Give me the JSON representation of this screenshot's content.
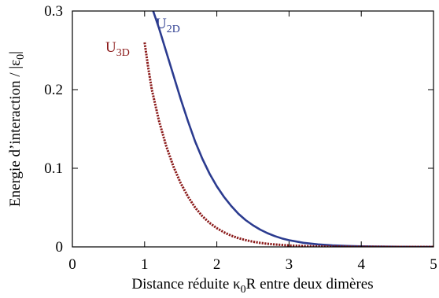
{
  "chart_data": {
    "type": "line",
    "xlabel": "Distance réduite κ0R entre deux dimères",
    "xlabel_parts": {
      "before": "Distance réduite κ",
      "sub": "0",
      "after": "R entre deux dimères"
    },
    "ylabel": "Energie d'interaction / |ε0|",
    "ylabel_parts": {
      "before": "Energie d’interaction / |ε",
      "sub": "0",
      "after": "|"
    },
    "xlim": [
      0,
      5
    ],
    "ylim": [
      0,
      0.3
    ],
    "xticks": [
      0,
      1,
      2,
      3,
      4,
      5
    ],
    "yticks": [
      0,
      0.1,
      0.2,
      0.3
    ],
    "ytick_labels": [
      "0",
      "0.1",
      "0.2",
      "0.3"
    ],
    "grid": false,
    "series": [
      {
        "name": "U2D",
        "name_parts": {
          "base": "U",
          "sub": "2D"
        },
        "color": "#2b3b8f",
        "style": "solid",
        "x": [
          1.0,
          1.1,
          1.2,
          1.3,
          1.4,
          1.5,
          1.6,
          1.7,
          1.8,
          1.9,
          2.0,
          2.1,
          2.2,
          2.3,
          2.4,
          2.5,
          2.6,
          2.7,
          2.8,
          2.9,
          3.0,
          3.2,
          3.4,
          3.6,
          3.8,
          4.0,
          4.2,
          4.4,
          4.6,
          4.8,
          5.0
        ],
        "y": [
          0.33,
          0.305,
          0.278,
          0.248,
          0.218,
          0.188,
          0.16,
          0.134,
          0.112,
          0.093,
          0.077,
          0.0635,
          0.052,
          0.042,
          0.034,
          0.0275,
          0.022,
          0.0175,
          0.0138,
          0.0108,
          0.0085,
          0.0052,
          0.0032,
          0.0019,
          0.0012,
          0.0007,
          0.0004,
          0.0003,
          0.0002,
          0.0001,
          0.0001
        ]
      },
      {
        "name": "U3D",
        "name_parts": {
          "base": "U",
          "sub": "3D"
        },
        "color": "#8b1a1a",
        "style": "dotted",
        "x": [
          1.0,
          1.05,
          1.1,
          1.2,
          1.3,
          1.4,
          1.5,
          1.6,
          1.7,
          1.8,
          1.9,
          2.0,
          2.1,
          2.2,
          2.3,
          2.4,
          2.5,
          2.6,
          2.7,
          2.8,
          3.0,
          3.2,
          3.4,
          3.6,
          3.8,
          4.0,
          4.2,
          4.5,
          5.0
        ],
        "y": [
          0.26,
          0.228,
          0.2,
          0.16,
          0.128,
          0.102,
          0.081,
          0.064,
          0.05,
          0.039,
          0.0305,
          0.0238,
          0.0185,
          0.0143,
          0.0111,
          0.0086,
          0.0066,
          0.0051,
          0.004,
          0.0031,
          0.0018,
          0.0011,
          0.0006,
          0.0004,
          0.0002,
          0.0001,
          0.0001,
          0.0,
          0.0
        ]
      }
    ]
  }
}
